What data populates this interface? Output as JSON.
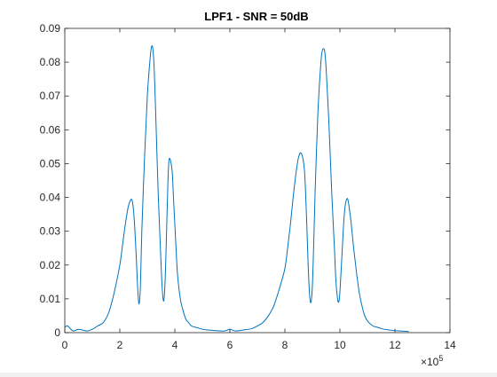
{
  "chart_data": {
    "type": "line",
    "title": "LPF1 - SNR = 50dB",
    "xlabel": "",
    "ylabel": "",
    "xlim": [
      0,
      14
    ],
    "ylim": [
      0,
      0.09
    ],
    "x_exponent_label": "×10",
    "x_exponent_power": "5",
    "x_ticks": [
      0,
      2,
      4,
      6,
      8,
      10,
      12,
      14
    ],
    "x_tick_labels": [
      "0",
      "2",
      "4",
      "6",
      "8",
      "10",
      "12",
      "14"
    ],
    "y_ticks": [
      0,
      0.01,
      0.02,
      0.03,
      0.04,
      0.05,
      0.06,
      0.07,
      0.08,
      0.09
    ],
    "y_tick_labels": [
      "0",
      "0.01",
      "0.02",
      "0.03",
      "0.04",
      "0.05",
      "0.06",
      "0.07",
      "0.08",
      "0.09"
    ],
    "grid": false,
    "colors": {
      "line": "#0072BD",
      "axes": "#262626",
      "background": "#ffffff"
    },
    "series": [
      {
        "x": [
          0,
          0.1,
          0.3,
          0.5,
          0.8,
          1.0,
          1.2,
          1.4,
          1.6,
          1.8,
          2.0,
          2.1,
          2.2,
          2.3,
          2.4,
          2.45,
          2.5,
          2.55,
          2.6,
          2.65,
          2.7,
          2.75,
          2.8,
          2.9,
          3.0,
          3.1,
          3.15,
          3.2,
          3.25,
          3.3,
          3.4,
          3.5,
          3.55,
          3.6,
          3.65,
          3.7,
          3.75,
          3.8,
          3.9,
          3.95,
          4.0,
          4.05,
          4.1,
          4.2,
          4.3,
          4.4,
          4.5,
          4.6,
          4.8,
          5.0,
          5.2,
          5.5,
          5.8,
          6.0,
          6.2,
          6.5,
          6.8,
          7.0,
          7.2,
          7.4,
          7.6,
          7.8,
          8.0,
          8.1,
          8.2,
          8.3,
          8.4,
          8.5,
          8.6,
          8.7,
          8.75,
          8.8,
          8.85,
          8.9,
          8.95,
          9.0,
          9.05,
          9.1,
          9.2,
          9.3,
          9.35,
          9.4,
          9.45,
          9.5,
          9.6,
          9.7,
          9.8,
          9.85,
          9.9,
          9.95,
          10.0,
          10.1,
          10.15,
          10.2,
          10.25,
          10.3,
          10.4,
          10.5,
          10.6,
          10.7,
          10.8,
          10.9,
          11.0,
          11.2,
          11.4,
          11.6,
          11.8,
          12.0,
          12.2,
          12.4,
          12.5
        ],
        "y": [
          0.0015,
          0.002,
          0.0005,
          0.001,
          0.0005,
          0.001,
          0.002,
          0.003,
          0.006,
          0.012,
          0.02,
          0.026,
          0.032,
          0.037,
          0.0393,
          0.039,
          0.036,
          0.03,
          0.022,
          0.013,
          0.0085,
          0.014,
          0.03,
          0.052,
          0.07,
          0.081,
          0.0845,
          0.084,
          0.078,
          0.066,
          0.04,
          0.02,
          0.012,
          0.0095,
          0.016,
          0.03,
          0.045,
          0.0515,
          0.048,
          0.04,
          0.032,
          0.024,
          0.017,
          0.01,
          0.0065,
          0.004,
          0.003,
          0.002,
          0.0015,
          0.001,
          0.0008,
          0.0006,
          0.0005,
          0.001,
          0.0005,
          0.0008,
          0.0012,
          0.002,
          0.003,
          0.005,
          0.008,
          0.013,
          0.019,
          0.025,
          0.032,
          0.04,
          0.047,
          0.052,
          0.053,
          0.049,
          0.042,
          0.031,
          0.019,
          0.011,
          0.009,
          0.014,
          0.027,
          0.042,
          0.065,
          0.079,
          0.083,
          0.084,
          0.083,
          0.078,
          0.062,
          0.042,
          0.025,
          0.016,
          0.011,
          0.009,
          0.012,
          0.027,
          0.034,
          0.038,
          0.0395,
          0.039,
          0.033,
          0.025,
          0.018,
          0.012,
          0.008,
          0.005,
          0.0035,
          0.002,
          0.0015,
          0.001,
          0.0008,
          0.0006,
          0.0005,
          0.0004,
          0.0003
        ]
      }
    ]
  }
}
